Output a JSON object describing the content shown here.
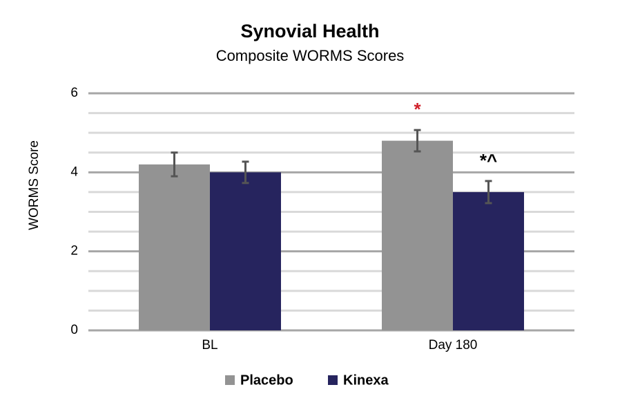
{
  "chart_data": {
    "type": "bar",
    "title": "Synovial Health",
    "subtitle": "Composite WORMS Scores",
    "y_label": "WORMS Score",
    "categories": [
      "BL",
      "Day 180"
    ],
    "series": [
      {
        "name": "Placebo",
        "color": "#939393",
        "values": [
          4.2,
          4.8
        ],
        "errors": [
          0.3,
          0.27
        ],
        "annotations": [
          null,
          "*"
        ],
        "annotation_color": "#d0202a"
      },
      {
        "name": "Kinexa",
        "color": "#26245e",
        "values": [
          4.0,
          3.5
        ],
        "errors": [
          0.27,
          0.28
        ],
        "annotations": [
          null,
          "*^"
        ],
        "annotation_color": "#000000"
      }
    ],
    "ylim": [
      0,
      6
    ],
    "yticks": [
      0,
      2,
      4,
      6
    ],
    "yminorticks": [
      0.5,
      1,
      1.5,
      2.5,
      3,
      3.5,
      4.5,
      5,
      5.5
    ],
    "grid": true,
    "error_color": "#555555",
    "legend": "bottom"
  }
}
